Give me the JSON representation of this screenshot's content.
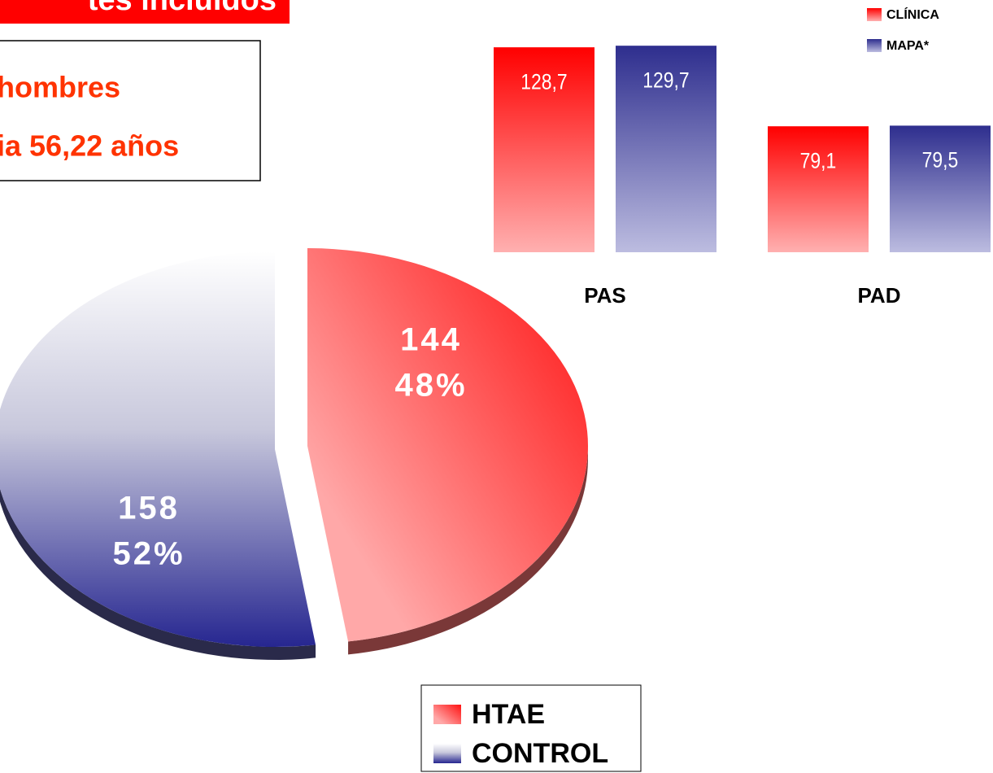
{
  "header": {
    "title": "tes incluidos"
  },
  "info": {
    "lines": [
      "hombres",
      "ia 56,22 años"
    ]
  },
  "chart_data": [
    {
      "type": "pie",
      "categories": [
        "HTAE",
        "CONTROL"
      ],
      "values": [
        144,
        158
      ],
      "percentages": [
        48,
        52
      ],
      "percentage_labels": [
        "48%",
        "52%"
      ],
      "colors": [
        "#ff3030",
        "#2a2a8c"
      ],
      "legend": "bottom"
    },
    {
      "type": "bar",
      "categories": [
        "PAS",
        "PAD"
      ],
      "series": [
        {
          "name": "CLÍNICA",
          "color": "#ff0000",
          "values": [
            128.7,
            79.1
          ],
          "value_labels": [
            "128,7",
            "79,1"
          ]
        },
        {
          "name": "MAPA*",
          "color": "#30308e",
          "values": [
            129.7,
            79.5
          ],
          "value_labels": [
            "129,7",
            "79,5"
          ]
        }
      ],
      "legend": "top-right"
    }
  ]
}
